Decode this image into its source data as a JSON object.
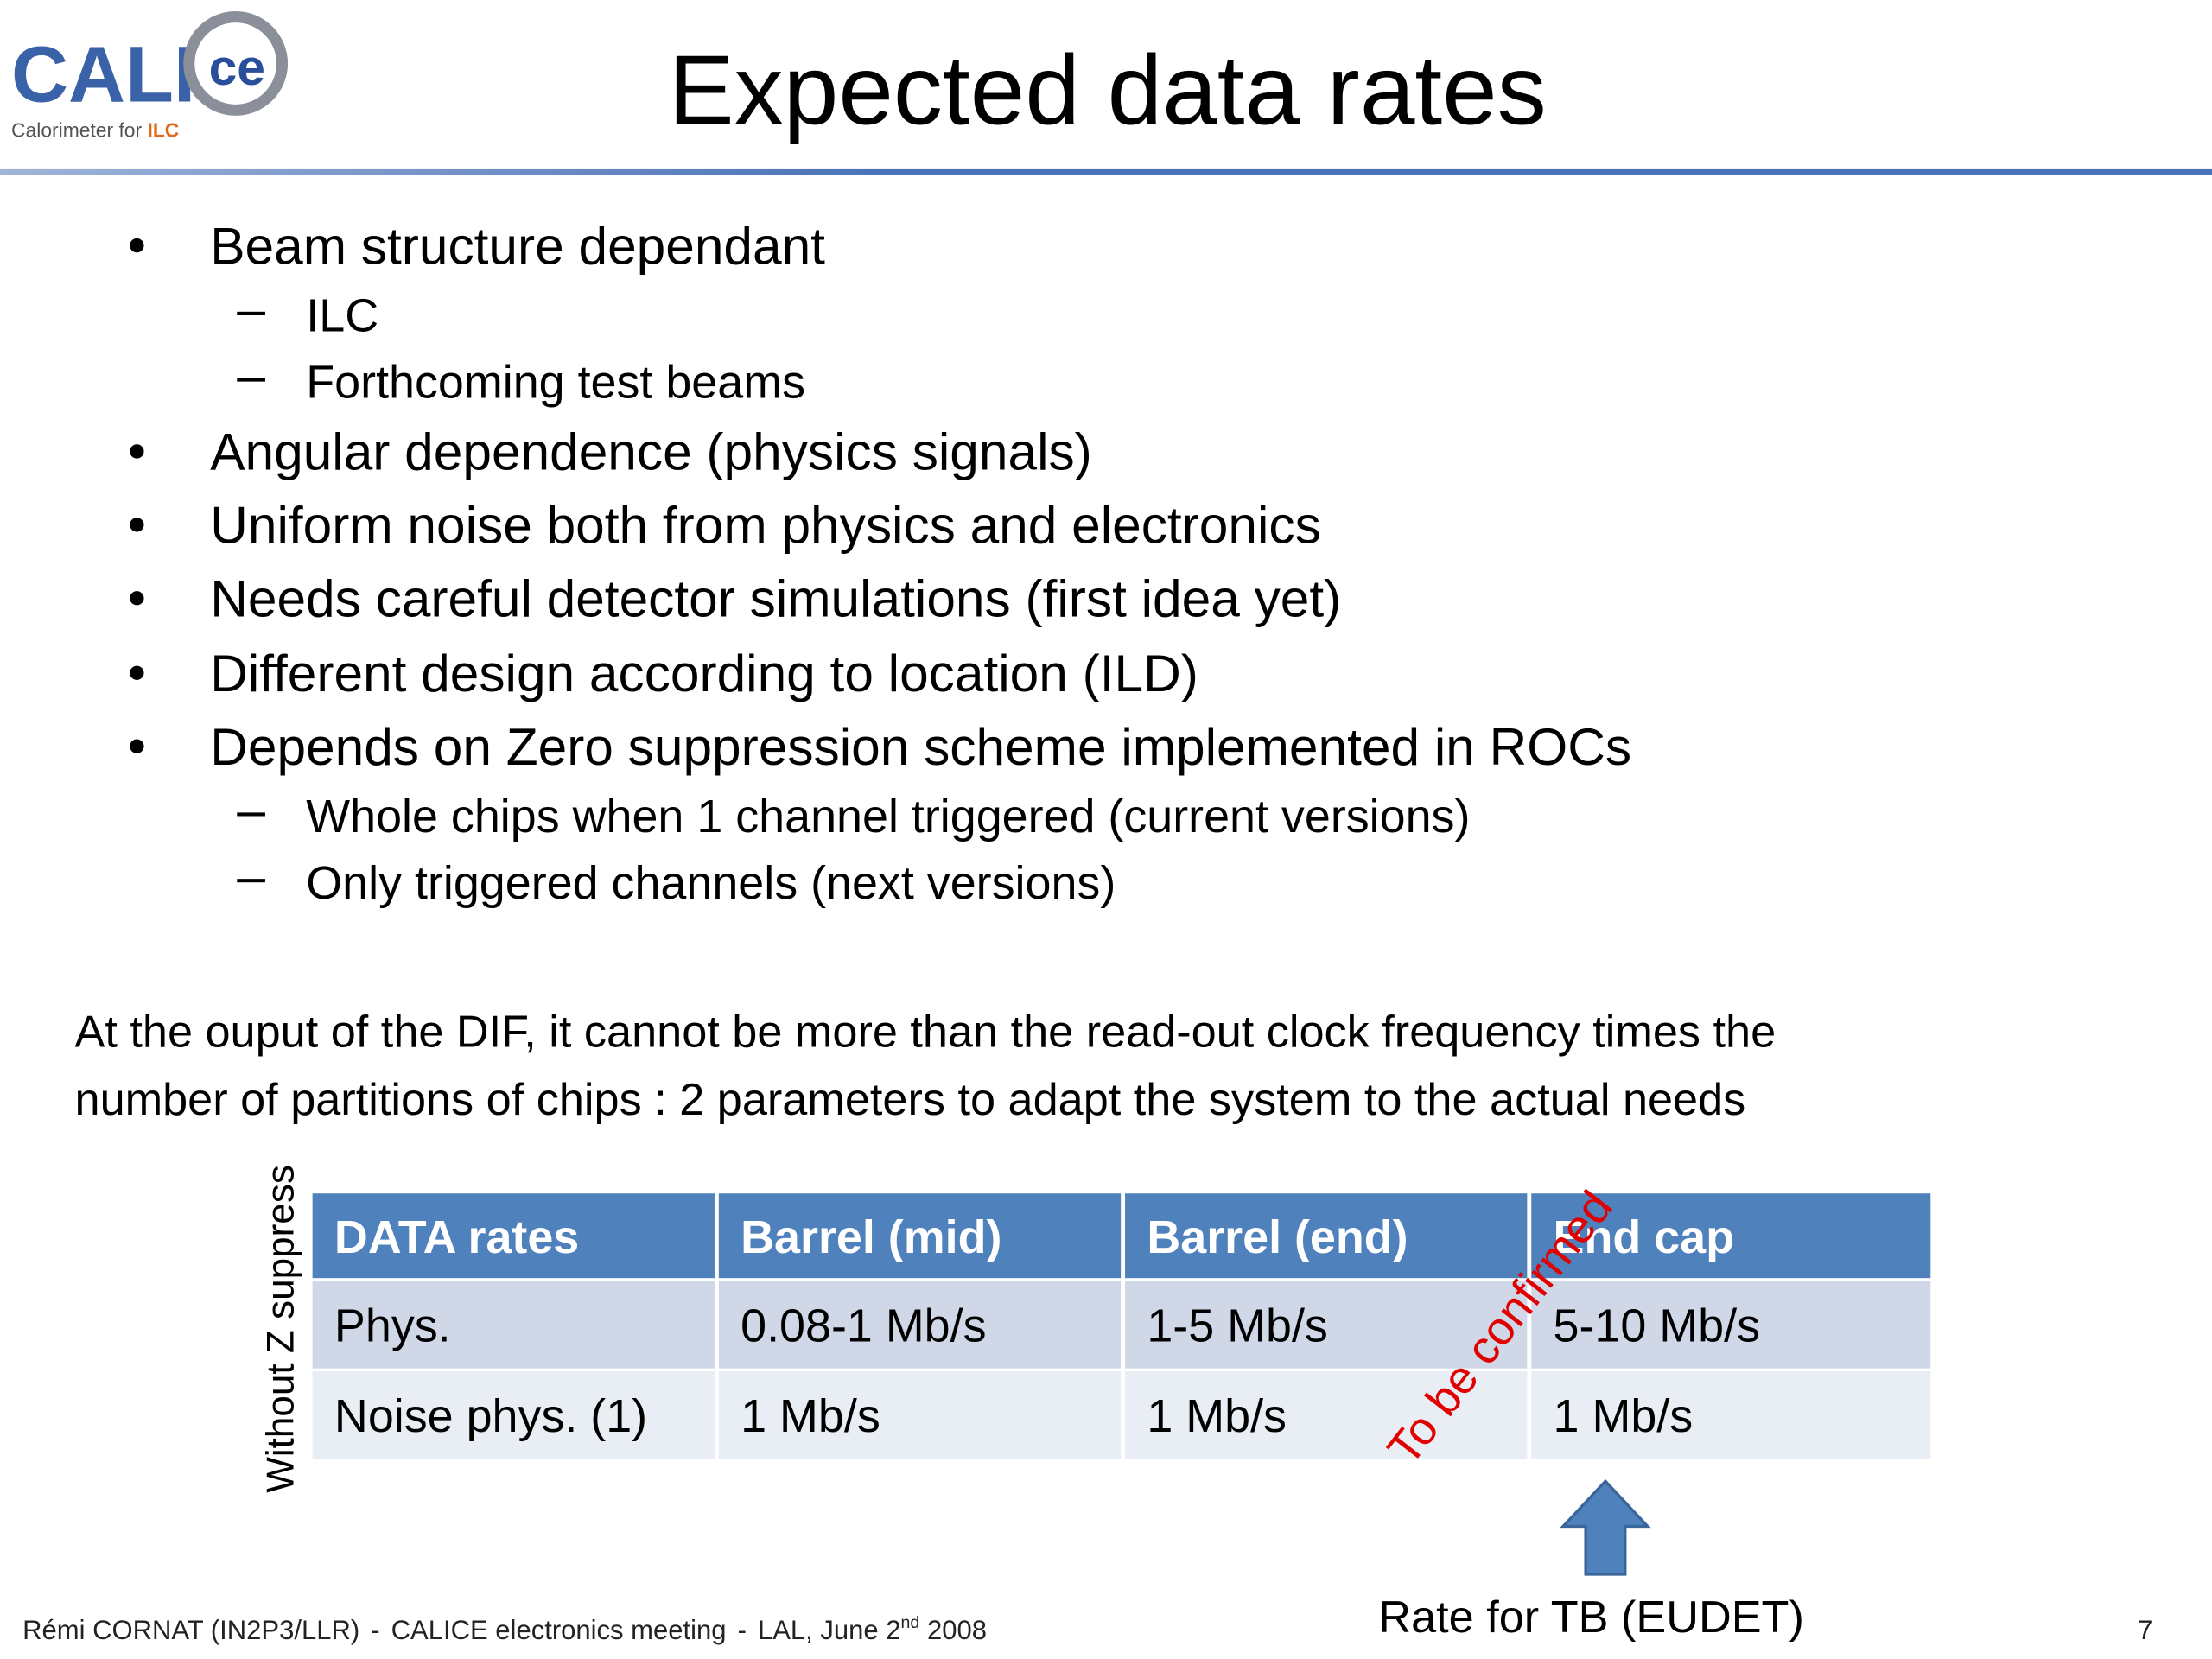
{
  "logo": {
    "letters": "CALI",
    "circle": "ce",
    "tagline": "Calorimeter for ",
    "tagline_highlight": "ILC"
  },
  "header": {
    "title": "Expected data rates"
  },
  "bullets": [
    {
      "text": "Beam structure dependant",
      "subitems": [
        "ILC",
        "Forthcoming test beams"
      ]
    },
    {
      "text": "Angular dependence (physics signals)",
      "subitems": []
    },
    {
      "text": "Uniform noise both from physics and electronics",
      "subitems": []
    },
    {
      "text": "Needs careful detector simulations (first idea yet)",
      "subitems": []
    },
    {
      "text": "Different design according to location (ILD)",
      "subitems": []
    },
    {
      "text": "Depends on Zero suppression scheme implemented in ROCs",
      "subitems": [
        "Whole chips when 1 channel triggered (current versions)",
        "Only triggered channels (next versions)"
      ]
    }
  ],
  "paragraph": [
    "At the ouput of the DIF, it cannot be more than  the read-out clock frequency times the",
    "number of partitions of chips : 2 parameters to adapt the system to the actual needs"
  ],
  "table": {
    "side_label": "Without Z suppress",
    "header": [
      "DATA rates",
      "Barrel (mid)",
      "Barrel (end)",
      "End cap"
    ],
    "rows": [
      [
        "Phys.",
        "0.08-1 Mb/s",
        "1-5 Mb/s",
        "5-10 Mb/s"
      ],
      [
        "Noise phys. (1)",
        "1 Mb/s",
        "1 Mb/s",
        "1 Mb/s"
      ]
    ],
    "annotation": "To be confirmed",
    "arrow_label": "Rate for TB (EUDET)"
  },
  "footer": {
    "author": "Rémi CORNAT (IN2P3/LLR)",
    "sep1": "-",
    "meeting": "CALICE electronics meeting",
    "sep2": "-",
    "place": "LAL, June 2",
    "superscript": "nd",
    "year": " 2008",
    "page": "7"
  }
}
